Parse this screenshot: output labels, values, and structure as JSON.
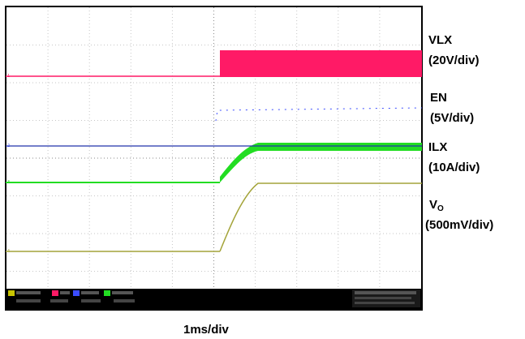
{
  "chart_data": {
    "type": "line",
    "time_base": "1ms/div",
    "grid": true,
    "channels": [
      {
        "name": "VLX",
        "scale": "(20V/div)",
        "color": "#ff1a66",
        "marker": "1"
      },
      {
        "name": "EN",
        "scale": "(5V/div)",
        "color": "#3a4cff",
        "marker": "2"
      },
      {
        "name": "ILX",
        "scale": "(10A/div)",
        "color": "#22dd22",
        "marker": "3"
      },
      {
        "name": "V",
        "subscript": "O",
        "scale": "(500mV/div)",
        "color": "#a4a43a",
        "marker": "4"
      }
    ]
  }
}
